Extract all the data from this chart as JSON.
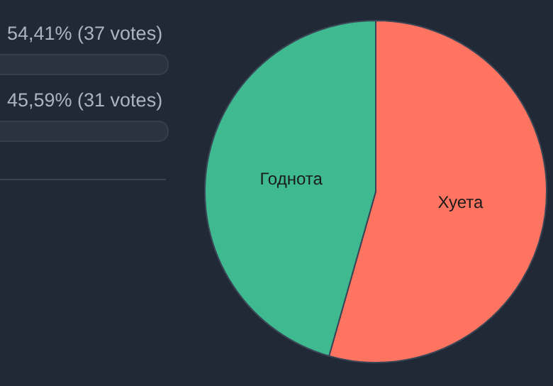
{
  "chart_data": {
    "type": "pie",
    "categories": [
      "Хуета",
      "Годнота"
    ],
    "values": [
      54.41,
      45.59
    ],
    "colors": [
      "#ff7461",
      "#3fba90"
    ],
    "annotations": [
      "54,41% (37 votes)",
      "45,59% (31 votes)"
    ],
    "legend": false
  }
}
